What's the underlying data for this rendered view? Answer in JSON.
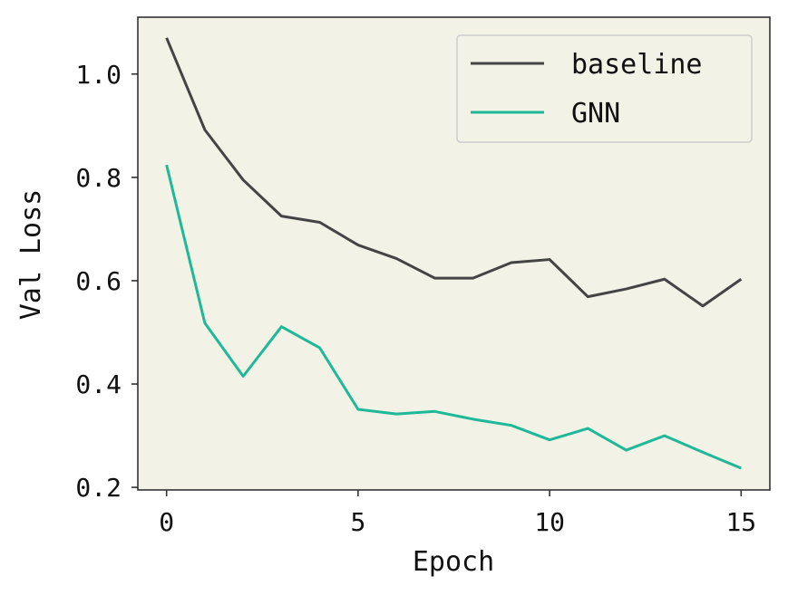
{
  "chart_data": {
    "type": "line",
    "x": [
      0,
      1,
      2,
      3,
      4,
      5,
      6,
      7,
      8,
      9,
      10,
      11,
      12,
      13,
      14,
      15
    ],
    "series": [
      {
        "name": "baseline",
        "color": "#444444",
        "values": [
          1.07,
          0.892,
          0.795,
          0.725,
          0.713,
          0.669,
          0.643,
          0.605,
          0.605,
          0.635,
          0.641,
          0.569,
          0.584,
          0.603,
          0.551,
          0.603
        ]
      },
      {
        "name": "GNN",
        "color": "#1fb899",
        "values": [
          0.824,
          0.518,
          0.415,
          0.511,
          0.47,
          0.351,
          0.342,
          0.347,
          0.332,
          0.32,
          0.292,
          0.314,
          0.272,
          0.3,
          0.268,
          0.237
        ]
      }
    ],
    "xlabel": "Epoch",
    "ylabel": "Val Loss",
    "xlim": [
      -0.75,
      15.75
    ],
    "ylim": [
      0.195,
      1.11
    ],
    "xticks": [
      0,
      5,
      10,
      15
    ],
    "xtick_labels": [
      "0",
      "5",
      "10",
      "15"
    ],
    "yticks": [
      0.2,
      0.4,
      0.6,
      0.8,
      1.0
    ],
    "ytick_labels": [
      "0.2",
      "0.4",
      "0.6",
      "0.8",
      "1.0"
    ],
    "grid": false,
    "legend_position": "top-right",
    "plot_background": "#f2f2e6"
  }
}
